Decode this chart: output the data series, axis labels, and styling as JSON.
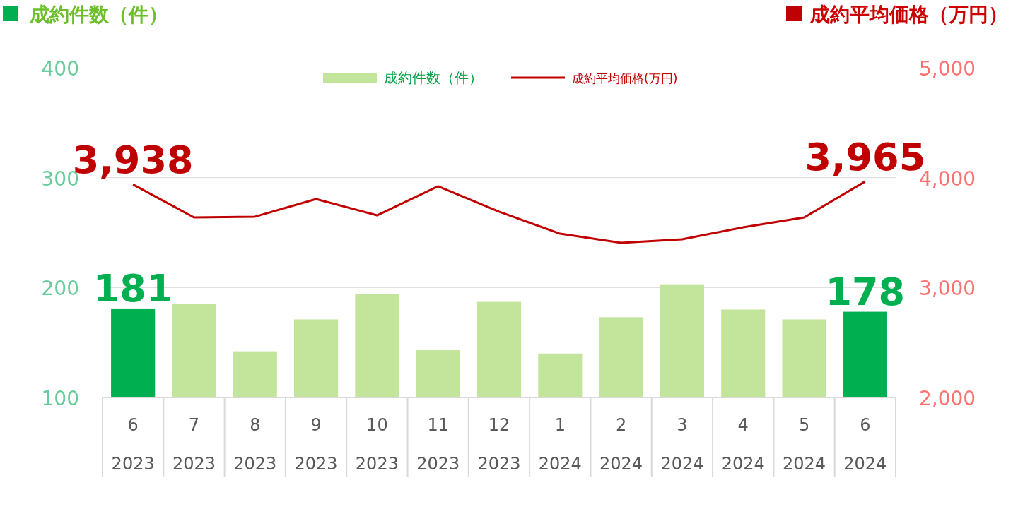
{
  "chart_data": {
    "type": "bar",
    "ylabel": "成約件数（件）",
    "y2label": "成約平均価格（万円）",
    "categories": [
      "6 2023",
      "7 2023",
      "8 2023",
      "9 2023",
      "10 2023",
      "11 2023",
      "12 2023",
      "1 2024",
      "2 2024",
      "3 2024",
      "4 2024",
      "5 2024",
      "6 2024"
    ],
    "series": [
      {
        "name": "成約件数（件）",
        "color": "#c3e59b",
        "colors": [
          "#00b050",
          "#c3e59b",
          "#c3e59b",
          "#c3e59b",
          "#c3e59b",
          "#c3e59b",
          "#c3e59b",
          "#c3e59b",
          "#c3e59b",
          "#c3e59b",
          "#c3e59b",
          "#c3e59b",
          "#00b050"
        ],
        "values": [
          181,
          185,
          142,
          171,
          194,
          143,
          187,
          140,
          173,
          203,
          180,
          171,
          178
        ],
        "value_labels": [
          "181",
          null,
          null,
          null,
          null,
          null,
          null,
          null,
          null,
          null,
          null,
          null,
          "178"
        ]
      },
      {
        "name": "成約平均価格(万円)",
        "type": "line",
        "axis": "y2",
        "color": "#c00000",
        "values": [
          3938,
          3638,
          3645,
          3805,
          3657,
          3921,
          3690,
          3490,
          3407,
          3439,
          3548,
          3638,
          3965
        ],
        "value_labels": [
          "3,938",
          null,
          null,
          null,
          null,
          null,
          null,
          null,
          null,
          null,
          null,
          null,
          "3,965"
        ]
      }
    ],
    "ylim": [
      100,
      400
    ],
    "yticks": [
      100,
      200,
      300,
      400
    ],
    "y2lim": [
      2000,
      5000
    ],
    "y2ticks": [
      {
        "value": 2000,
        "label": "2,000"
      },
      {
        "value": 3000,
        "label": "3,000"
      },
      {
        "value": 4000,
        "label": "4,000"
      },
      {
        "value": 5000,
        "label": "5,000"
      }
    ],
    "grid": "y",
    "legend": "top"
  }
}
